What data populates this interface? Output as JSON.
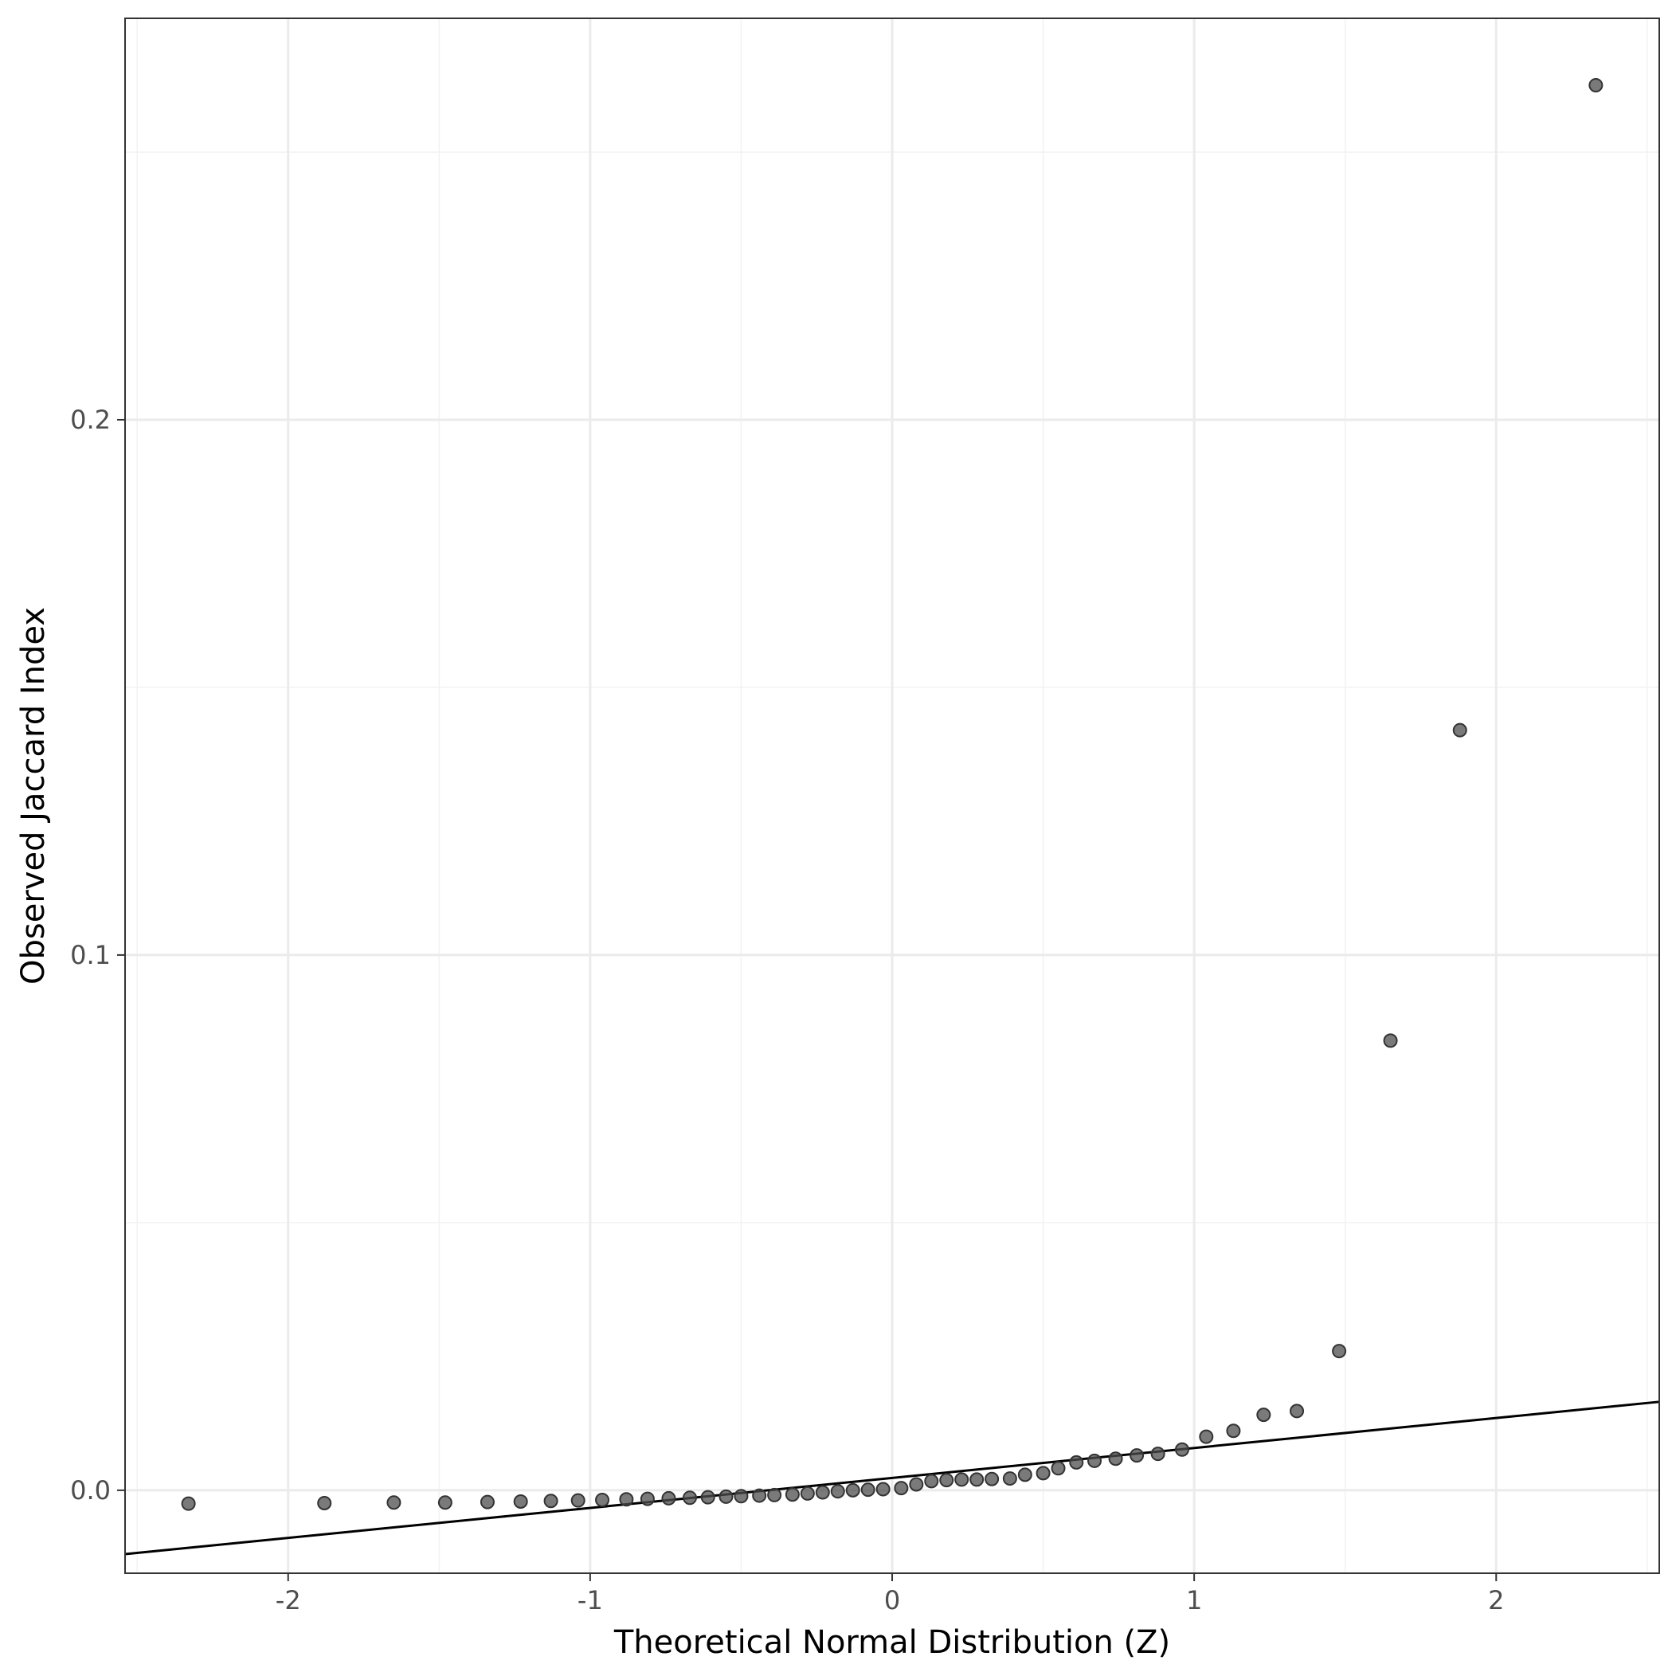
{
  "chart_data": {
    "type": "scatter",
    "title": "",
    "xlabel": "Theoretical Normal Distribution (Z)",
    "ylabel": "Observed Jaccard Index",
    "xlim": [
      -2.54,
      2.54
    ],
    "ylim": [
      -0.0155,
      0.275
    ],
    "x_ticks": [
      -2,
      -1,
      0,
      1,
      2
    ],
    "x_tick_labels": [
      "-2",
      "-1",
      "0",
      "1",
      "2"
    ],
    "y_ticks": [
      0.0,
      0.1,
      0.2
    ],
    "y_tick_labels": [
      "0.0",
      "0.1",
      "0.2"
    ],
    "grid": true,
    "legend": "none",
    "point_color": "#4d4d4d",
    "line_color": "#000000",
    "points": {
      "x": [
        -2.33,
        -1.88,
        -1.65,
        -1.48,
        -1.34,
        -1.23,
        -1.13,
        -1.04,
        -0.96,
        -0.88,
        -0.81,
        -0.74,
        -0.67,
        -0.61,
        -0.55,
        -0.5,
        -0.44,
        -0.39,
        -0.33,
        -0.28,
        -0.23,
        -0.18,
        -0.13,
        -0.08,
        -0.03,
        0.03,
        0.08,
        0.13,
        0.18,
        0.23,
        0.28,
        0.33,
        0.39,
        0.44,
        0.5,
        0.55,
        0.61,
        0.67,
        0.74,
        0.81,
        0.88,
        0.96,
        1.04,
        1.13,
        1.23,
        1.34,
        1.48,
        1.65,
        1.88,
        2.33
      ],
      "y": [
        -0.0025,
        -0.0024,
        -0.0023,
        -0.0023,
        -0.0022,
        -0.0021,
        -0.002,
        -0.0019,
        -0.0018,
        -0.0017,
        -0.0016,
        -0.0015,
        -0.0014,
        -0.0013,
        -0.0012,
        -0.0011,
        -0.001,
        -0.0009,
        -0.0008,
        -0.0006,
        -0.0004,
        -0.0002,
        0.0,
        0.0001,
        0.0002,
        0.0004,
        0.0011,
        0.0017,
        0.0019,
        0.002,
        0.002,
        0.0021,
        0.0022,
        0.0029,
        0.0032,
        0.0041,
        0.0052,
        0.0055,
        0.0059,
        0.0065,
        0.0068,
        0.0076,
        0.01,
        0.0111,
        0.0141,
        0.0148,
        0.026,
        0.084,
        0.142,
        0.2625
      ]
    },
    "reference_line": {
      "intercept": 0.0023,
      "slope": 0.0056
    }
  }
}
